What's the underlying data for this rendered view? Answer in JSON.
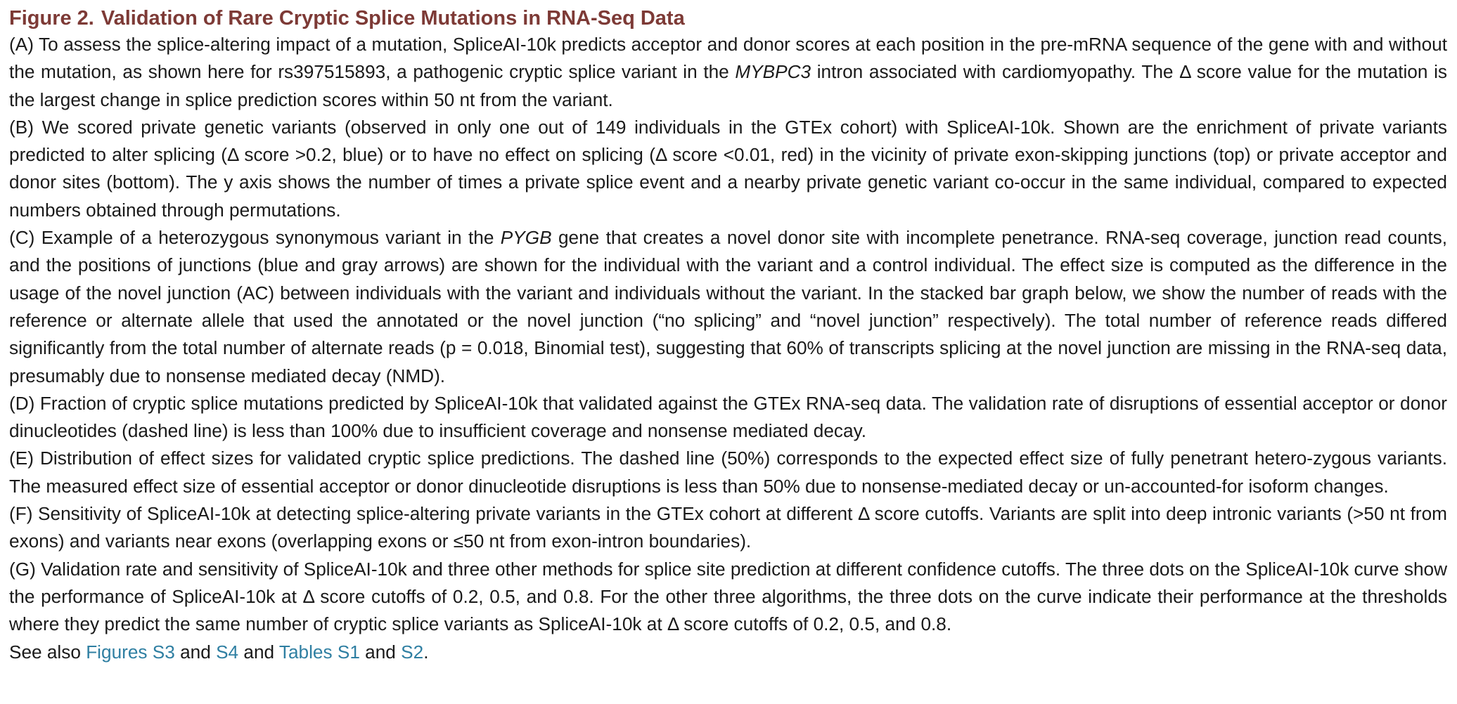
{
  "figure": {
    "number": "Figure 2.",
    "title": "Validation of Rare Cryptic Splice Mutations in RNA-Seq Data"
  },
  "paragraphs": {
    "A": {
      "part1": "(A) To assess the splice-altering impact of a mutation, SpliceAI-10k predicts acceptor and donor scores at each position in the pre-mRNA sequence of the gene with and without the mutation, as shown here for rs397515893, a pathogenic cryptic splice variant in the ",
      "gene": "MYBPC3",
      "part2": " intron associated with cardiomyopathy. The Δ score value for the mutation is the largest change in splice prediction scores within 50 nt from the variant."
    },
    "B": {
      "text": "(B) We scored private genetic variants (observed in only one out of 149 individuals in the GTEx cohort) with SpliceAI-10k. Shown are the enrichment of private variants predicted to alter splicing (Δ score >0.2, blue) or to have no effect on splicing (Δ score <0.01, red) in the vicinity of private exon-skipping junctions (top) or private acceptor and donor sites (bottom). The y axis shows the number of times a private splice event and a nearby private genetic variant co-occur in the same individual, compared to expected numbers obtained through permutations."
    },
    "C": {
      "part1": "(C) Example of a heterozygous synonymous variant in the ",
      "gene": "PYGB",
      "part2": " gene that creates a novel donor site with incomplete penetrance. RNA-seq coverage, junction read counts, and the positions of junctions (blue and gray arrows) are shown for the individual with the variant and a control individual. The effect size is computed as the difference in the usage of the novel junction (AC) between individuals with the variant and individuals without the variant. In the stacked bar graph below, we show the number of reads with the reference or alternate allele that used the annotated or the novel junction (“no splicing” and “novel junction” respectively). The total number of reference reads differed significantly from the total number of alternate reads (p = 0.018, Binomial test), suggesting that 60% of transcripts splicing at the novel junction are missing in the RNA-seq data, presumably due to nonsense mediated decay (NMD)."
    },
    "D": {
      "text": "(D) Fraction of cryptic splice mutations predicted by SpliceAI-10k that validated against the GTEx RNA-seq data. The validation rate of disruptions of essential acceptor or donor dinucleotides (dashed line) is less than 100% due to insufficient coverage and nonsense mediated decay."
    },
    "E": {
      "text": "(E) Distribution of effect sizes for validated cryptic splice predictions. The dashed line (50%) corresponds to the expected effect size of fully penetrant hetero-zygous variants. The measured effect size of essential acceptor or donor dinucleotide disruptions is less than 50% due to nonsense-mediated decay or un-accounted-for isoform changes."
    },
    "F": {
      "text": "(F) Sensitivity of SpliceAI-10k at detecting splice-altering private variants in the GTEx cohort at different Δ score cutoffs. Variants are split into deep intronic variants (>50 nt from exons) and variants near exons (overlapping exons or ≤50 nt from exon-intron boundaries)."
    },
    "G": {
      "text": "(G) Validation rate and sensitivity of SpliceAI-10k and three other methods for splice site prediction at different confidence cutoffs. The three dots on the SpliceAI-10k curve show the performance of SpliceAI-10k at Δ score cutoffs of 0.2, 0.5, and 0.8. For the other three algorithms, the three dots on the curve indicate their performance at the thresholds where they predict the same number of cryptic splice variants as SpliceAI-10k at Δ score cutoffs of 0.2, 0.5, and 0.8."
    }
  },
  "see_also": {
    "prefix": "See also ",
    "link1": "Figures S3",
    "and1": " and ",
    "link2": "S4",
    "and2": " and ",
    "link3": "Tables S1",
    "and3": " and ",
    "link4": "S2",
    "suffix": "."
  },
  "colors": {
    "title": "#7d3a36",
    "link": "#2f7fa2",
    "text": "#1a1a1a"
  }
}
